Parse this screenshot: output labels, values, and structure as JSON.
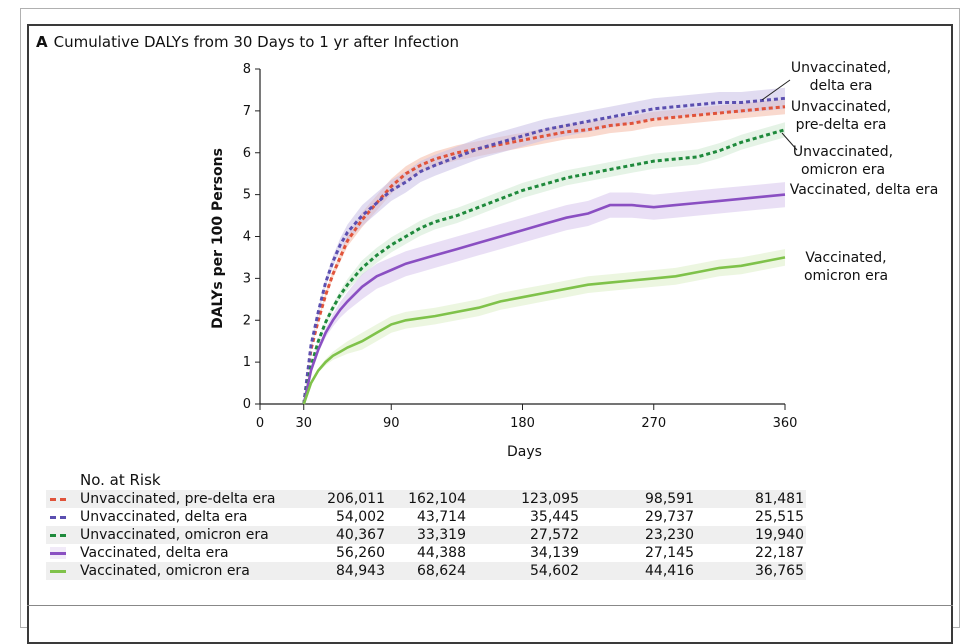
{
  "panel": {
    "letter": "A",
    "title": "Cumulative DALYs from 30 Days to 1 yr after Infection"
  },
  "colors": {
    "pre_delta": "#e0533a",
    "delta_unvax": "#5b4fb0",
    "omicron_unvax": "#1f8a3c",
    "delta_vax": "#8a4fc2",
    "omicron_vax": "#7fc24a",
    "band_pre_delta": "#f4b9a6",
    "band_delta_unvax": "#c9bfe6",
    "band_omicron_unvax": "#cfe9d2",
    "band_delta_vax": "#d7c4ec",
    "band_omicron_vax": "#dcefc7"
  },
  "chart_data": {
    "type": "line",
    "title": "Cumulative DALYs from 30 Days to 1 yr after Infection",
    "xlabel": "Days",
    "ylabel": "DALYs per 100 Persons",
    "xlim": [
      0,
      360
    ],
    "ylim": [
      0,
      8
    ],
    "x_ticks": [
      0,
      30,
      90,
      180,
      270,
      360
    ],
    "y_ticks": [
      0,
      1,
      2,
      3,
      4,
      5,
      6,
      7,
      8
    ],
    "grid": false,
    "series": [
      {
        "key": "pre_delta",
        "name": "Unvaccinated, pre-delta era",
        "label_lines": [
          "Unvaccinated,",
          "pre-delta era"
        ],
        "style": "dashed",
        "x": [
          30,
          35,
          40,
          45,
          50,
          55,
          60,
          70,
          80,
          90,
          100,
          110,
          120,
          135,
          150,
          165,
          180,
          195,
          210,
          225,
          240,
          255,
          270,
          285,
          300,
          315,
          330,
          345,
          360
        ],
        "y": [
          0,
          1.3,
          2.0,
          2.6,
          3.1,
          3.5,
          3.9,
          4.4,
          4.8,
          5.2,
          5.5,
          5.7,
          5.85,
          6.0,
          6.1,
          6.2,
          6.3,
          6.4,
          6.5,
          6.55,
          6.65,
          6.7,
          6.8,
          6.85,
          6.9,
          6.95,
          7.0,
          7.05,
          7.1
        ],
        "ci": 0.18
      },
      {
        "key": "delta_unvax",
        "name": "Unvaccinated, delta era",
        "label_lines": [
          "Unvaccinated,",
          "delta era"
        ],
        "style": "dashed",
        "x": [
          30,
          35,
          40,
          45,
          50,
          55,
          60,
          70,
          80,
          90,
          100,
          110,
          120,
          135,
          150,
          165,
          180,
          195,
          210,
          225,
          240,
          255,
          270,
          285,
          300,
          315,
          330,
          345,
          360
        ],
        "y": [
          0,
          1.4,
          2.2,
          2.9,
          3.4,
          3.8,
          4.1,
          4.5,
          4.8,
          5.1,
          5.3,
          5.55,
          5.7,
          5.9,
          6.1,
          6.25,
          6.4,
          6.55,
          6.65,
          6.75,
          6.85,
          6.95,
          7.05,
          7.1,
          7.15,
          7.2,
          7.2,
          7.25,
          7.3
        ],
        "ci": 0.25
      },
      {
        "key": "omicron_unvax",
        "name": "Unvaccinated, omicron era",
        "label_lines": [
          "Unvaccinated,",
          "omicron era"
        ],
        "style": "dashed",
        "x": [
          30,
          35,
          40,
          45,
          50,
          55,
          60,
          70,
          80,
          90,
          100,
          110,
          120,
          135,
          150,
          165,
          180,
          195,
          210,
          225,
          240,
          255,
          270,
          285,
          300,
          315,
          330,
          345,
          360
        ],
        "y": [
          0,
          0.9,
          1.5,
          1.95,
          2.3,
          2.6,
          2.85,
          3.25,
          3.55,
          3.8,
          4.0,
          4.2,
          4.35,
          4.5,
          4.7,
          4.9,
          5.1,
          5.25,
          5.4,
          5.5,
          5.6,
          5.7,
          5.8,
          5.85,
          5.9,
          6.05,
          6.25,
          6.4,
          6.55
        ],
        "ci": 0.18
      },
      {
        "key": "delta_vax",
        "name": "Vaccinated, delta era",
        "label_lines": [
          "Vaccinated, delta era"
        ],
        "style": "solid",
        "x": [
          30,
          35,
          40,
          45,
          50,
          55,
          60,
          70,
          80,
          90,
          100,
          110,
          120,
          135,
          150,
          165,
          180,
          195,
          210,
          225,
          240,
          255,
          270,
          285,
          300,
          315,
          330,
          345,
          360
        ],
        "y": [
          0,
          0.8,
          1.3,
          1.7,
          2.0,
          2.25,
          2.45,
          2.8,
          3.05,
          3.2,
          3.35,
          3.45,
          3.55,
          3.7,
          3.85,
          4.0,
          4.15,
          4.3,
          4.45,
          4.55,
          4.75,
          4.75,
          4.7,
          4.75,
          4.8,
          4.85,
          4.9,
          4.95,
          5.0
        ],
        "ci": 0.3
      },
      {
        "key": "omicron_vax",
        "name": "Vaccinated, omicron era",
        "label_lines": [
          "Vaccinated,",
          "omicron era"
        ],
        "style": "solid",
        "x": [
          30,
          35,
          40,
          45,
          50,
          55,
          60,
          70,
          80,
          90,
          100,
          110,
          120,
          135,
          150,
          165,
          180,
          195,
          210,
          225,
          240,
          255,
          270,
          285,
          300,
          315,
          330,
          345,
          360
        ],
        "y": [
          0,
          0.5,
          0.8,
          1.0,
          1.15,
          1.25,
          1.35,
          1.5,
          1.7,
          1.9,
          2.0,
          2.05,
          2.1,
          2.2,
          2.3,
          2.45,
          2.55,
          2.65,
          2.75,
          2.85,
          2.9,
          2.95,
          3.0,
          3.05,
          3.15,
          3.25,
          3.3,
          3.4,
          3.5
        ],
        "ci": 0.2
      }
    ]
  },
  "risk_table": {
    "heading": "No. at Risk",
    "rows": [
      {
        "key": "pre_delta",
        "label": "Unvaccinated, pre-delta era",
        "values": [
          "206,011",
          "162,104",
          "123,095",
          "98,591",
          "81,481"
        ]
      },
      {
        "key": "delta_unvax",
        "label": "Unvaccinated, delta era",
        "values": [
          "54,002",
          "43,714",
          "35,445",
          "29,737",
          "25,515"
        ]
      },
      {
        "key": "omicron_unvax",
        "label": "Unvaccinated, omicron era",
        "values": [
          "40,367",
          "33,319",
          "27,572",
          "23,230",
          "19,940"
        ]
      },
      {
        "key": "delta_vax",
        "label": "Vaccinated, delta era",
        "values": [
          "56,260",
          "44,388",
          "34,139",
          "27,145",
          "22,187"
        ]
      },
      {
        "key": "omicron_vax",
        "label": "Vaccinated, omicron era",
        "values": [
          "84,943",
          "68,624",
          "54,602",
          "44,416",
          "36,765"
        ]
      }
    ]
  }
}
